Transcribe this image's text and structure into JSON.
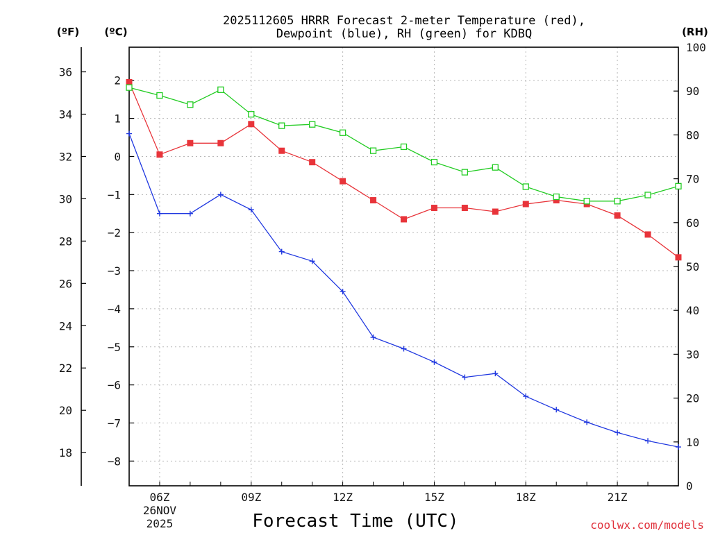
{
  "chart_data": {
    "type": "line",
    "title_line1": "2025112605 HRRR Forecast 2-meter Temperature (red),",
    "title_line2": "Dewpoint (blue), RH (green) for KDBQ",
    "xlabel": "Forecast Time (UTC)",
    "units": {
      "fahrenheit": "(ºF)",
      "celsius": "(ºC)",
      "rh": "(RH)"
    },
    "credit": "coolwx.com/models",
    "x_ticks": [
      {
        "hour": 6,
        "lines": [
          "06Z",
          "26NOV",
          "2025"
        ]
      },
      {
        "hour": 9,
        "lines": [
          "09Z"
        ]
      },
      {
        "hour": 12,
        "lines": [
          "12Z"
        ]
      },
      {
        "hour": 15,
        "lines": [
          "15Z"
        ]
      },
      {
        "hour": 18,
        "lines": [
          "18Z"
        ]
      },
      {
        "hour": 21,
        "lines": [
          "21Z"
        ]
      }
    ],
    "xlim": [
      5,
      23
    ],
    "ylim_celsius": [
      -8.65,
      2.87
    ],
    "ylim_rh": [
      0,
      100
    ],
    "celsius_ticks": [
      2,
      1,
      0,
      -1,
      -2,
      -3,
      -4,
      -5,
      -6,
      -7,
      -8
    ],
    "fahrenheit_ticks": [
      36,
      34,
      32,
      30,
      28,
      26,
      24,
      22,
      20,
      18
    ],
    "rh_ticks": [
      100,
      90,
      80,
      70,
      60,
      50,
      40,
      30,
      20,
      10,
      0
    ],
    "x": [
      5,
      6,
      7,
      8,
      9,
      10,
      11,
      12,
      13,
      14,
      15,
      16,
      17,
      18,
      19,
      20,
      21,
      22,
      23
    ],
    "series": [
      {
        "name": "2-meter Temperature",
        "unit": "C",
        "color": "#e8343a",
        "marker": "filled-square",
        "values": [
          1.95,
          0.05,
          0.35,
          0.35,
          0.85,
          0.15,
          -0.15,
          -0.65,
          -1.15,
          -1.65,
          -1.35,
          -1.35,
          -1.45,
          -1.25,
          -1.15,
          -1.25,
          -1.55,
          -2.05,
          -2.65
        ]
      },
      {
        "name": "Dewpoint",
        "unit": "C",
        "color": "#2038e0",
        "marker": "plus",
        "values": [
          0.6,
          -1.5,
          -1.5,
          -1.0,
          -1.4,
          -2.5,
          -2.75,
          -3.55,
          -4.75,
          -5.05,
          -5.4,
          -5.8,
          -5.7,
          -6.3,
          -6.65,
          -6.98,
          -7.25,
          -7.47,
          -7.63
        ]
      },
      {
        "name": "Relative Humidity",
        "unit": "%",
        "color": "#22cc22",
        "marker": "open-square",
        "values": [
          90.8,
          89.0,
          86.9,
          90.3,
          84.7,
          82.1,
          82.4,
          80.5,
          76.4,
          77.3,
          73.8,
          71.5,
          72.6,
          68.2,
          65.9,
          64.9,
          64.9,
          66.3,
          68.3
        ]
      }
    ]
  }
}
